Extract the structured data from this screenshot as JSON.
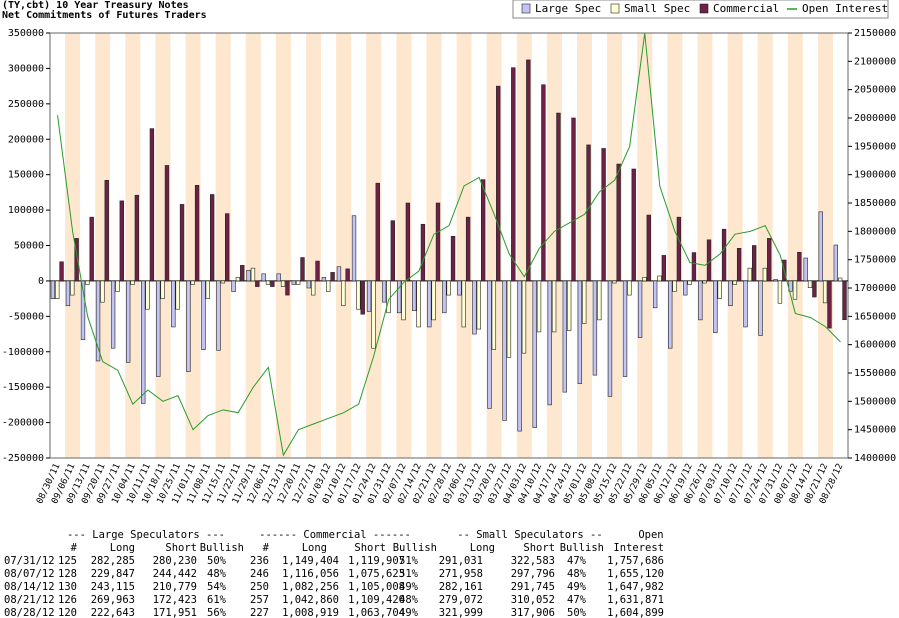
{
  "chart_data": {
    "type": "bar",
    "title": "(TY,cbt) 10 Year Treasury Notes",
    "subtitle": "Net Commitments of Futures Traders",
    "categories": [
      "08/30/11",
      "09/06/11",
      "09/13/11",
      "09/20/11",
      "09/27/11",
      "10/04/11",
      "10/11/11",
      "10/18/11",
      "10/25/11",
      "11/01/11",
      "11/08/11",
      "11/15/11",
      "11/22/11",
      "11/29/11",
      "12/06/11",
      "12/13/11",
      "12/20/11",
      "12/27/11",
      "01/03/12",
      "01/10/12",
      "01/17/12",
      "01/24/12",
      "01/31/12",
      "02/07/12",
      "02/14/12",
      "02/21/12",
      "02/28/12",
      "03/06/12",
      "03/13/12",
      "03/20/12",
      "03/27/12",
      "04/03/12",
      "04/10/12",
      "04/17/12",
      "04/24/12",
      "05/01/12",
      "05/08/12",
      "05/15/12",
      "05/22/12",
      "05/29/12",
      "06/05/12",
      "06/12/12",
      "06/19/12",
      "06/26/12",
      "07/03/12",
      "07/10/12",
      "07/17/12",
      "07/24/12",
      "07/31/12",
      "08/07/12",
      "08/14/12",
      "08/21/12",
      "08/28/12"
    ],
    "series": [
      {
        "name": "Large Spec",
        "color": "#c4c4f4",
        "values": [
          -25000,
          -35000,
          -83000,
          -113000,
          -95000,
          -115000,
          -173000,
          -135000,
          -65000,
          -128000,
          -97000,
          -98000,
          -15000,
          15000,
          10000,
          10000,
          -5000,
          -10000,
          5000,
          20000,
          92000,
          -43000,
          -30000,
          -45000,
          -42000,
          -65000,
          -45000,
          -20000,
          -75000,
          -180000,
          -197000,
          -212000,
          -207000,
          -175000,
          -157000,
          -145000,
          -133000,
          -163000,
          -135000,
          -80000,
          -38000,
          -95000,
          -20000,
          -55000,
          -73000,
          -35000,
          -65000,
          -77000,
          2055,
          -14595,
          32336,
          97540,
          50692
        ]
      },
      {
        "name": "Small Spec",
        "color": "#ffffd4",
        "values": [
          -25000,
          -20000,
          -5000,
          -30000,
          -15000,
          -5000,
          -40000,
          -25000,
          -40000,
          -5000,
          -25000,
          -3000,
          5000,
          18000,
          -5000,
          -8000,
          -5000,
          -20000,
          -15000,
          -35000,
          -40000,
          -95000,
          -45000,
          -55000,
          -65000,
          -55000,
          -20000,
          -65000,
          -68000,
          -97000,
          -108000,
          -102000,
          -72000,
          -72000,
          -70000,
          -60000,
          -55000,
          -3000,
          -20000,
          5000,
          7000,
          -15000,
          -5000,
          -3000,
          -25000,
          -5000,
          18000,
          18000,
          -31552,
          -25838,
          -9584,
          -30980,
          4093
        ]
      },
      {
        "name": "Commercial",
        "color": "#6e2045",
        "values": [
          27000,
          60000,
          90000,
          142000,
          113000,
          121000,
          215000,
          163000,
          108000,
          135000,
          122000,
          95000,
          22000,
          -8000,
          -8000,
          -20000,
          33000,
          28000,
          12000,
          17000,
          -47000,
          138000,
          85000,
          110000,
          80000,
          110000,
          63000,
          90000,
          143000,
          275000,
          301000,
          312000,
          277000,
          237000,
          230000,
          192000,
          187000,
          165000,
          158000,
          93000,
          36000,
          90000,
          40000,
          58000,
          73000,
          46000,
          50000,
          60000,
          29497,
          40433,
          -22752,
          -66560,
          -54785
        ]
      },
      {
        "name": "Open Interest",
        "color": "#2a9a2a",
        "axis": "y2",
        "values": [
          2005000,
          1800000,
          1650000,
          1570000,
          1555000,
          1495000,
          1520000,
          1500000,
          1510000,
          1450000,
          1475000,
          1485000,
          1480000,
          1525000,
          1560000,
          1405000,
          1450000,
          1460000,
          1470000,
          1480000,
          1495000,
          1580000,
          1680000,
          1710000,
          1730000,
          1795000,
          1810000,
          1880000,
          1895000,
          1830000,
          1760000,
          1720000,
          1770000,
          1800000,
          1815000,
          1830000,
          1870000,
          1890000,
          1950000,
          2150000,
          1880000,
          1800000,
          1745000,
          1740000,
          1760000,
          1795000,
          1800000,
          1810000,
          1757686,
          1655120,
          1647982,
          1631871,
          1604899
        ]
      }
    ],
    "ylim": [
      -250000,
      350000
    ],
    "yticks": [
      -250000,
      -200000,
      -150000,
      -100000,
      -50000,
      0,
      50000,
      100000,
      150000,
      200000,
      250000,
      300000,
      350000
    ],
    "y2lim": [
      1400000,
      2150000
    ],
    "y2ticks": [
      1400000,
      1450000,
      1500000,
      1550000,
      1600000,
      1650000,
      1700000,
      1750000,
      1800000,
      1850000,
      1900000,
      1950000,
      2000000,
      2050000,
      2100000,
      2150000
    ],
    "legend": "top-right"
  },
  "table": {
    "groups": [
      "--- Large Speculators ---",
      "------ Commercial ------",
      "-- Small Speculators --",
      "Open"
    ],
    "columns": [
      "#",
      "Long",
      "Short",
      "Bullish",
      "#",
      "Long",
      "Short",
      "Bullish",
      "Long",
      "Short",
      "Bullish",
      "Interest"
    ],
    "rows": [
      [
        "07/31/12",
        "125",
        "282,285",
        "280,230",
        "50%",
        "236",
        "1,149,404",
        "1,119,907",
        "51%",
        "291,031",
        "322,583",
        "47%",
        "1,757,686"
      ],
      [
        "08/07/12",
        "128",
        "229,847",
        "244,442",
        "48%",
        "246",
        "1,116,056",
        "1,075,623",
        "51%",
        "271,958",
        "297,796",
        "48%",
        "1,655,120"
      ],
      [
        "08/14/12",
        "130",
        "243,115",
        "210,779",
        "54%",
        "250",
        "1,082,256",
        "1,105,008",
        "49%",
        "282,161",
        "291,745",
        "49%",
        "1,647,982"
      ],
      [
        "08/21/12",
        "126",
        "269,963",
        "172,423",
        "61%",
        "257",
        "1,042,860",
        "1,109,420",
        "48%",
        "279,072",
        "310,052",
        "47%",
        "1,631,871"
      ],
      [
        "08/28/12",
        "120",
        "222,643",
        "171,951",
        "56%",
        "227",
        "1,008,919",
        "1,063,704",
        "49%",
        "321,999",
        "317,906",
        "50%",
        "1,604,899"
      ]
    ]
  }
}
